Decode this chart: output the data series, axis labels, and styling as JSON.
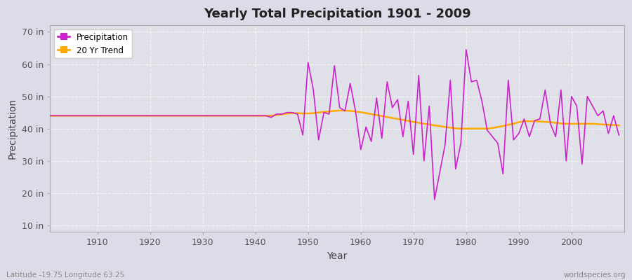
{
  "title": "Yearly Total Precipitation 1901 - 2009",
  "xlabel": "Year",
  "ylabel": "Precipitation",
  "bottom_left_label": "Latitude -19.75 Longitude 63.25",
  "bottom_right_label": "worldspecies.org",
  "background_color": "#dcdce8",
  "plot_bg_color": "#e0e0e8",
  "precipitation_color": "#cc22cc",
  "trend_color": "#ffaa00",
  "ylim": [
    8,
    72
  ],
  "yticks": [
    10,
    20,
    30,
    40,
    50,
    60,
    70
  ],
  "ytick_labels": [
    "10 in",
    "20 in",
    "30 in",
    "40 in",
    "50 in",
    "60 in",
    "70 in"
  ],
  "xlim": [
    1901,
    2010
  ],
  "xticks": [
    1910,
    1920,
    1930,
    1940,
    1950,
    1960,
    1970,
    1980,
    1990,
    2000
  ],
  "years": [
    1901,
    1902,
    1903,
    1904,
    1905,
    1906,
    1907,
    1908,
    1909,
    1910,
    1911,
    1912,
    1913,
    1914,
    1915,
    1916,
    1917,
    1918,
    1919,
    1920,
    1921,
    1922,
    1923,
    1924,
    1925,
    1926,
    1927,
    1928,
    1929,
    1930,
    1931,
    1932,
    1933,
    1934,
    1935,
    1936,
    1937,
    1938,
    1939,
    1940,
    1941,
    1942,
    1943,
    1944,
    1945,
    1946,
    1947,
    1948,
    1949,
    1950,
    1951,
    1952,
    1953,
    1954,
    1955,
    1956,
    1957,
    1958,
    1959,
    1960,
    1961,
    1962,
    1963,
    1964,
    1965,
    1966,
    1967,
    1968,
    1969,
    1970,
    1971,
    1972,
    1973,
    1974,
    1975,
    1976,
    1977,
    1978,
    1979,
    1980,
    1981,
    1982,
    1983,
    1984,
    1985,
    1986,
    1987,
    1988,
    1989,
    1990,
    1991,
    1992,
    1993,
    1994,
    1995,
    1996,
    1997,
    1998,
    1999,
    2000,
    2001,
    2002,
    2003,
    2004,
    2005,
    2006,
    2007,
    2008,
    2009
  ],
  "precip": [
    44.0,
    44.0,
    44.0,
    44.0,
    44.0,
    44.0,
    44.0,
    44.0,
    44.0,
    44.0,
    44.0,
    44.0,
    44.0,
    44.0,
    44.0,
    44.0,
    44.0,
    44.0,
    44.0,
    44.0,
    44.0,
    44.0,
    44.0,
    44.0,
    44.0,
    44.0,
    44.0,
    44.0,
    44.0,
    44.0,
    44.0,
    44.0,
    44.0,
    44.0,
    44.0,
    44.0,
    44.0,
    44.0,
    44.0,
    44.0,
    44.0,
    44.0,
    43.5,
    44.5,
    44.5,
    45.0,
    45.0,
    44.5,
    38.0,
    60.5,
    52.0,
    36.5,
    45.0,
    44.5,
    59.5,
    46.5,
    45.5,
    54.0,
    45.5,
    33.5,
    40.5,
    36.0,
    49.5,
    37.0,
    54.5,
    46.5,
    49.0,
    37.5,
    48.5,
    32.0,
    56.5,
    30.0,
    47.0,
    18.0,
    26.5,
    35.0,
    55.0,
    27.5,
    35.5,
    64.5,
    54.5,
    55.0,
    48.5,
    39.5,
    37.5,
    35.5,
    26.0,
    55.0,
    36.5,
    38.5,
    43.0,
    37.5,
    42.5,
    43.0,
    52.0,
    41.5,
    37.5,
    52.0,
    30.0,
    50.0,
    47.0,
    29.0,
    50.0,
    47.0,
    44.0,
    45.5,
    38.5,
    44.0,
    38.0
  ],
  "trend": [
    44.0,
    44.0,
    44.0,
    44.0,
    44.0,
    44.0,
    44.0,
    44.0,
    44.0,
    44.0,
    44.0,
    44.0,
    44.0,
    44.0,
    44.0,
    44.0,
    44.0,
    44.0,
    44.0,
    44.0,
    44.0,
    44.0,
    44.0,
    44.0,
    44.0,
    44.0,
    44.0,
    44.0,
    44.0,
    44.0,
    44.0,
    44.0,
    44.0,
    44.0,
    44.0,
    44.0,
    44.0,
    44.0,
    44.0,
    44.0,
    44.0,
    44.0,
    44.0,
    44.2,
    44.4,
    44.7,
    44.8,
    44.8,
    44.7,
    44.7,
    44.8,
    45.0,
    45.2,
    45.3,
    45.5,
    45.6,
    45.6,
    45.5,
    45.3,
    45.1,
    44.8,
    44.5,
    44.2,
    43.9,
    43.6,
    43.3,
    43.0,
    42.7,
    42.4,
    42.1,
    41.8,
    41.5,
    41.3,
    41.0,
    40.8,
    40.5,
    40.3,
    40.1,
    40.0,
    40.0,
    40.0,
    40.0,
    40.0,
    40.0,
    40.2,
    40.5,
    40.8,
    41.2,
    41.5,
    42.0,
    42.3,
    42.3,
    42.3,
    42.2,
    42.1,
    42.0,
    41.8,
    41.6,
    41.5,
    41.5,
    41.5,
    41.5,
    41.5,
    41.5,
    41.4,
    41.3,
    41.2,
    41.1,
    41.0
  ]
}
